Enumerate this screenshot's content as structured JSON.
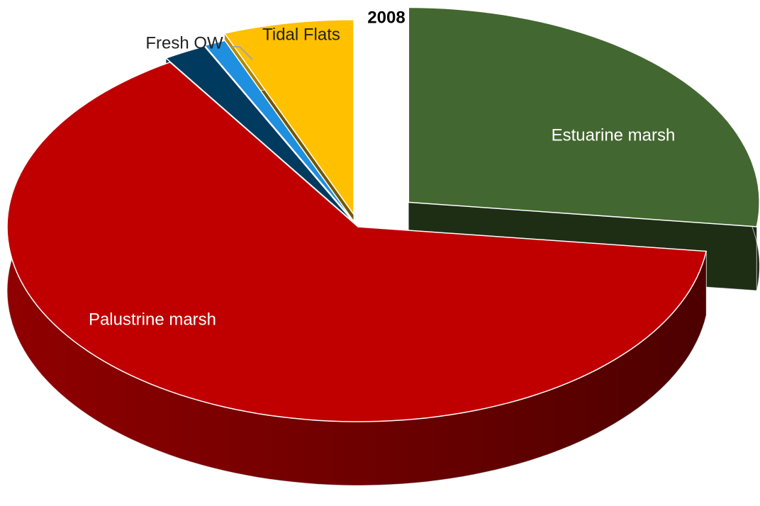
{
  "chart_data": {
    "type": "pie",
    "title": "2008",
    "categories": [
      "Estuarine marsh",
      "Palustrine marsh",
      null,
      "Fresh OW",
      "Tidal Flats"
    ],
    "values": [
      27,
      64,
      2,
      1,
      6
    ],
    "colors": [
      "#436730",
      "#c00000",
      "#003a5e",
      "#1f8fe0",
      "#ffc000"
    ]
  }
}
